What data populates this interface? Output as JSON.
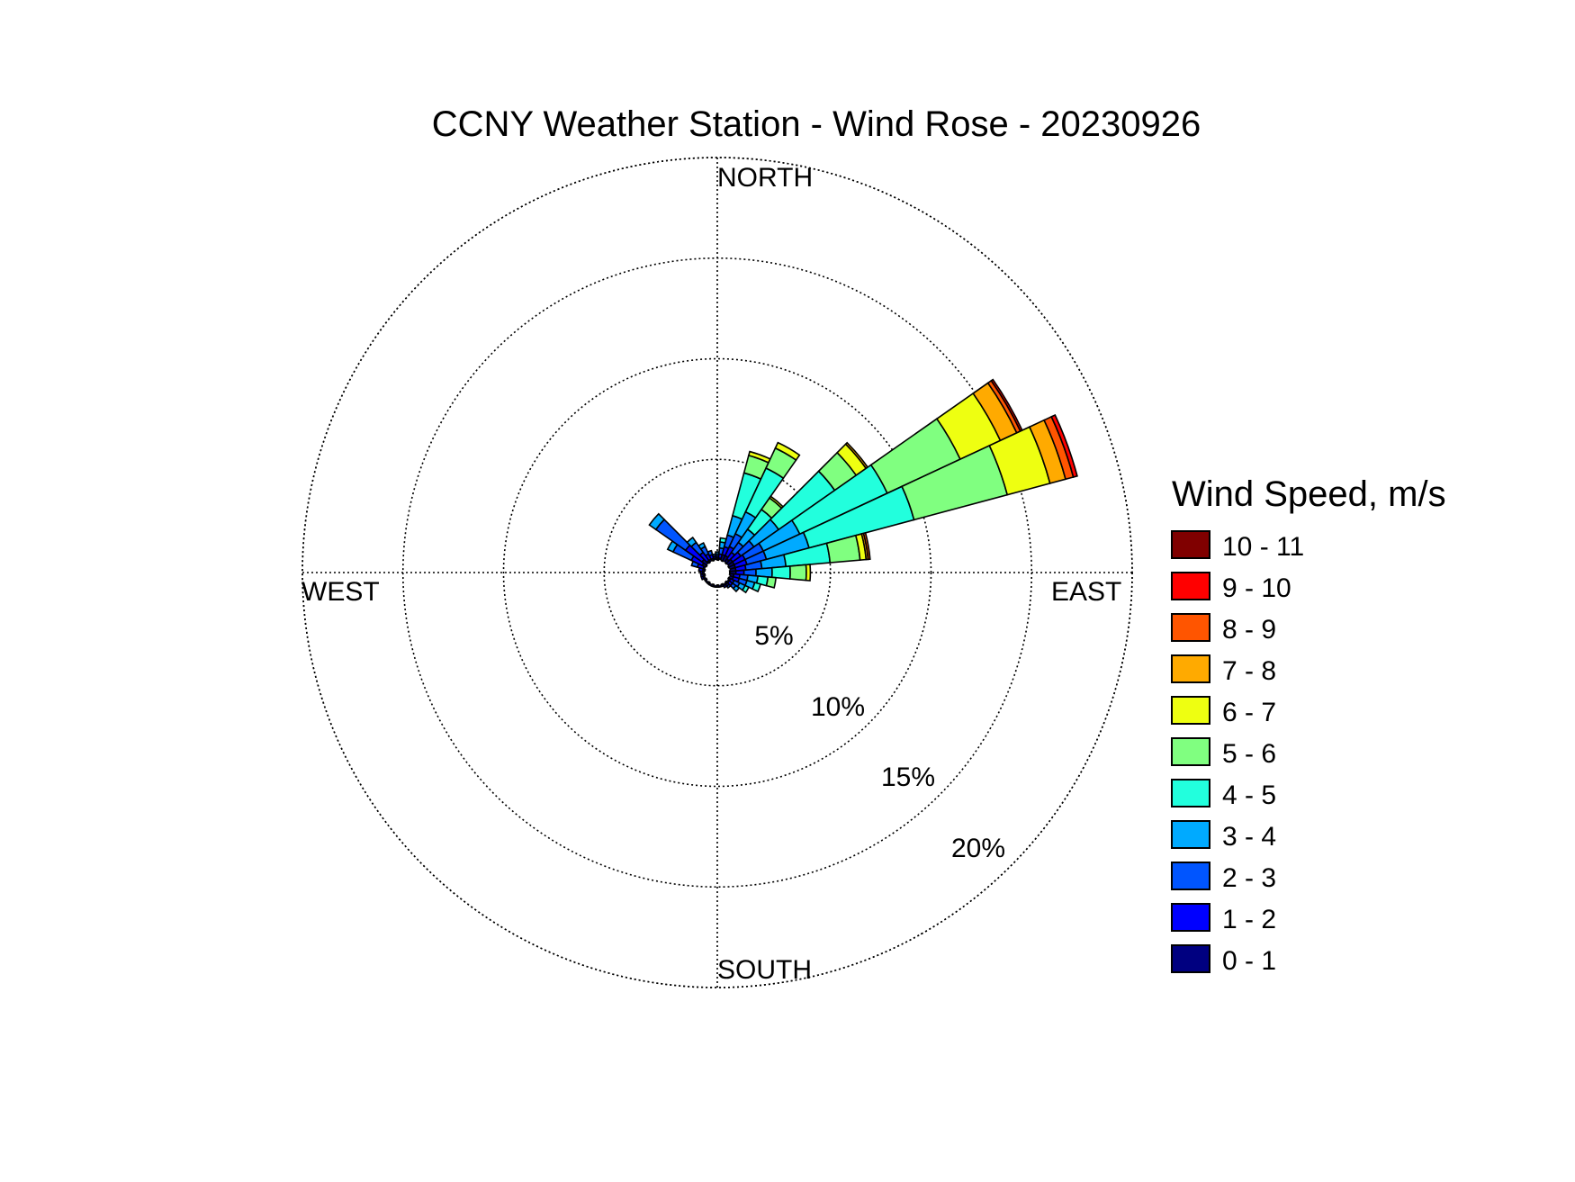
{
  "chart_data": {
    "type": "windrose",
    "title": "CCNY Weather Station - Wind Rose - 20230926",
    "direction_labels": {
      "north": "NORTH",
      "east": "EAST",
      "south": "SOUTH",
      "west": "WEST"
    },
    "radial_ticks": [
      {
        "value": 5,
        "label": "5%"
      },
      {
        "value": 10,
        "label": "10%"
      },
      {
        "value": 15,
        "label": "15%"
      },
      {
        "value": 20,
        "label": "20%"
      }
    ],
    "rmax": 20,
    "grid": true,
    "legend": {
      "title": "Wind Speed, m/s",
      "placement": "right",
      "entries": [
        {
          "label": "10 - 11",
          "color": "#800000"
        },
        {
          "label": "9 - 10",
          "color": "#ff0000"
        },
        {
          "label": "8 - 9",
          "color": "#ff5500"
        },
        {
          "label": "7 - 8",
          "color": "#ffaa00"
        },
        {
          "label": "6 - 7",
          "color": "#eeff11"
        },
        {
          "label": "5 - 6",
          "color": "#80ff80"
        },
        {
          "label": "4 - 5",
          "color": "#22ffdd"
        },
        {
          "label": "3 - 4",
          "color": "#00aaff"
        },
        {
          "label": "2 - 3",
          "color": "#0055ff"
        },
        {
          "label": "1 - 2",
          "color": "#0000ff"
        },
        {
          "label": "0 - 1",
          "color": "#000080"
        }
      ]
    },
    "speed_bins": [
      "0 - 1",
      "1 - 2",
      "2 - 3",
      "3 - 4",
      "4 - 5",
      "5 - 6",
      "6 - 7",
      "7 - 8",
      "8 - 9",
      "9 - 10",
      "10 - 11"
    ],
    "bin_colors": [
      "#000080",
      "#0000ff",
      "#0055ff",
      "#00aaff",
      "#22ffdd",
      "#80ff80",
      "#eeff11",
      "#ffaa00",
      "#ff5500",
      "#ff0000",
      "#800000"
    ],
    "sector_width_deg": 10,
    "sectors": [
      {
        "direction": 0,
        "values": [
          0.1,
          0.1,
          0.1,
          0.1
        ]
      },
      {
        "direction": 10,
        "values": [
          0.1,
          0.2,
          0.3,
          0.3,
          0.2
        ]
      },
      {
        "direction": 20,
        "values": [
          0.3,
          0.4,
          0.6,
          1.0,
          2.2,
          0.9,
          0.2
        ]
      },
      {
        "direction": 30,
        "values": [
          0.3,
          0.5,
          0.7,
          1.2,
          2.4,
          1.1,
          0.3
        ]
      },
      {
        "direction": 40,
        "values": [
          0.2,
          0.4,
          0.6,
          0.8,
          1.2,
          0.7,
          0.1
        ]
      },
      {
        "direction": 50,
        "values": [
          0.3,
          0.5,
          0.8,
          1.5,
          3.4,
          1.3,
          0.6,
          0.1
        ]
      },
      {
        "direction": 60,
        "values": [
          0.3,
          0.6,
          1.0,
          2.0,
          4.8,
          4.0,
          2.2,
          0.9,
          0.2,
          0.1
        ]
      },
      {
        "direction": 70,
        "values": [
          0.3,
          0.6,
          1.0,
          2.2,
          5.4,
          4.8,
          2.2,
          0.8,
          0.4,
          0.2
        ]
      },
      {
        "direction": 80,
        "values": [
          0.3,
          0.5,
          0.8,
          1.2,
          2.2,
          1.5,
          0.3,
          0.1,
          0.1
        ]
      },
      {
        "direction": 90,
        "values": [
          0.3,
          0.4,
          0.6,
          0.8,
          0.9,
          0.8,
          0.2
        ]
      },
      {
        "direction": 100,
        "values": [
          0.2,
          0.3,
          0.4,
          0.5,
          0.5,
          0.4
        ]
      },
      {
        "direction": 110,
        "values": [
          0.2,
          0.3,
          0.4,
          0.4,
          0.3
        ]
      },
      {
        "direction": 120,
        "values": [
          0.1,
          0.2,
          0.3,
          0.3,
          0.2
        ]
      },
      {
        "direction": 130,
        "values": [
          0.1,
          0.2,
          0.2,
          0.2
        ]
      },
      {
        "direction": 140,
        "values": [
          0.1,
          0.1,
          0.1
        ]
      },
      {
        "direction": 150,
        "values": [
          0.1,
          0.1
        ]
      },
      {
        "direction": 160,
        "values": [
          0.1
        ]
      },
      {
        "direction": 170,
        "values": [
          0.1
        ]
      },
      {
        "direction": 180,
        "values": [
          0.1
        ]
      },
      {
        "direction": 190,
        "values": [
          0.1
        ]
      },
      {
        "direction": 200,
        "values": [
          0.1
        ]
      },
      {
        "direction": 210,
        "values": [
          0.1
        ]
      },
      {
        "direction": 220,
        "values": [
          0.1
        ]
      },
      {
        "direction": 230,
        "values": [
          0.1
        ]
      },
      {
        "direction": 240,
        "values": [
          0.1
        ]
      },
      {
        "direction": 250,
        "values": [
          0.1,
          0.1
        ]
      },
      {
        "direction": 260,
        "values": [
          0.1,
          0.1
        ]
      },
      {
        "direction": 270,
        "values": [
          0.1,
          0.1
        ]
      },
      {
        "direction": 280,
        "values": [
          0.1,
          0.2
        ]
      },
      {
        "direction": 290,
        "values": [
          0.1,
          0.3,
          0.3
        ]
      },
      {
        "direction": 300,
        "values": [
          0.2,
          0.6,
          1.0,
          0.3
        ]
      },
      {
        "direction": 310,
        "values": [
          0.3,
          1.0,
          1.8,
          0.4
        ]
      },
      {
        "direction": 320,
        "values": [
          0.1,
          0.5,
          0.6,
          0.3
        ]
      },
      {
        "direction": 330,
        "values": [
          0.1,
          0.3,
          0.4,
          0.2
        ]
      },
      {
        "direction": 340,
        "values": [
          0.1,
          0.2,
          0.2
        ]
      },
      {
        "direction": 350,
        "values": [
          0.1,
          0.1,
          0.1
        ]
      }
    ]
  }
}
